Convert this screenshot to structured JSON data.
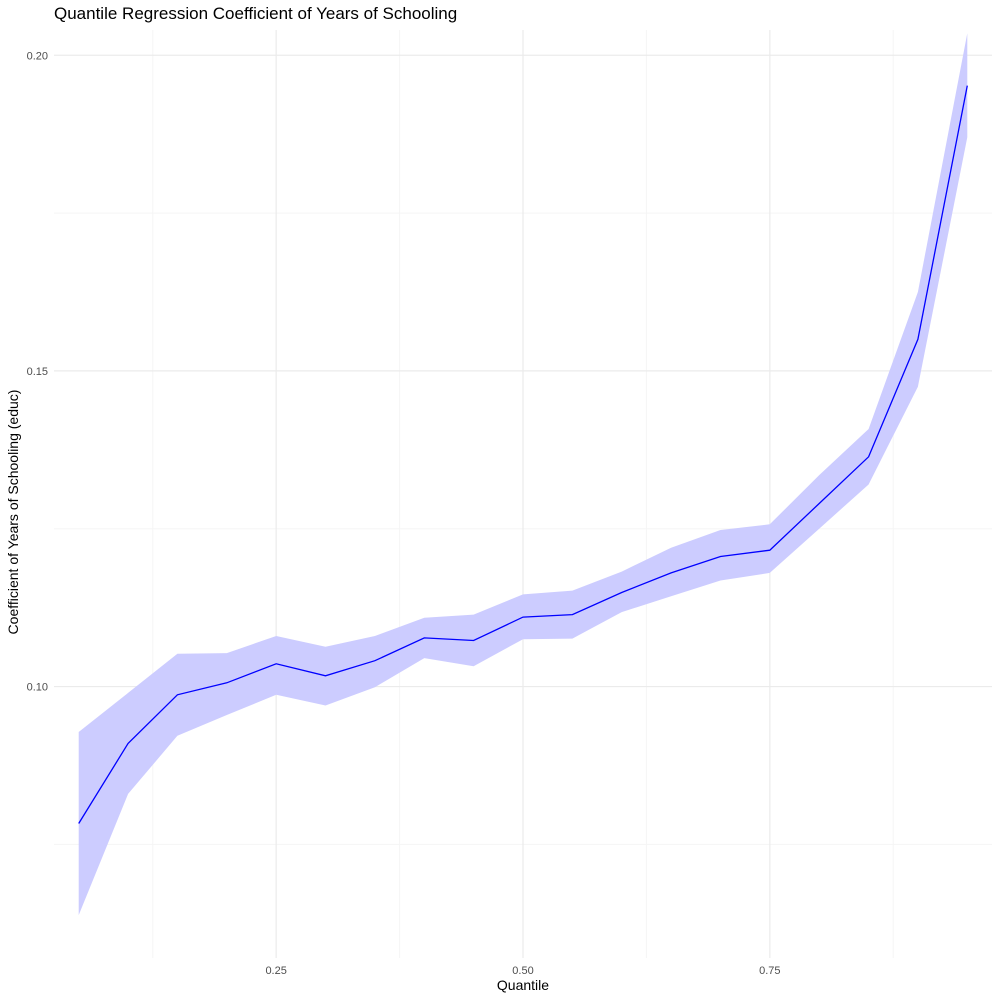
{
  "chart_data": {
    "type": "line",
    "title": "Quantile Regression Coefficient of Years of Schooling",
    "xlabel": "Quantile",
    "ylabel": "Coefficient of Years of Schooling (educ)",
    "xlim": [
      0.025,
      0.975
    ],
    "ylim": [
      0.057,
      0.204
    ],
    "x_ticks": [
      0.25,
      0.5,
      0.75
    ],
    "x_tick_labels": [
      "0.25",
      "0.50",
      "0.75"
    ],
    "y_ticks": [
      0.1,
      0.15,
      0.2
    ],
    "y_tick_labels": [
      "0.10",
      "0.15",
      "0.20"
    ],
    "grid": true,
    "series": [
      {
        "x": [
          0.05,
          0.1,
          0.15,
          0.2,
          0.25,
          0.3,
          0.35,
          0.4,
          0.45,
          0.5,
          0.55,
          0.6,
          0.65,
          0.7,
          0.75,
          0.8,
          0.85,
          0.9,
          0.95
        ],
        "values": [
          0.0783,
          0.091,
          0.0987,
          0.1006,
          0.1036,
          0.1017,
          0.1041,
          0.1077,
          0.1073,
          0.111,
          0.1114,
          0.1149,
          0.118,
          0.1206,
          0.1216,
          0.129,
          0.1364,
          0.155,
          0.1952
        ],
        "lower": [
          0.0638,
          0.083,
          0.0922,
          0.0955,
          0.0987,
          0.097,
          0.0999,
          0.1045,
          0.1032,
          0.1075,
          0.1076,
          0.1118,
          0.1143,
          0.1168,
          0.118,
          0.125,
          0.132,
          0.1475,
          0.187
        ],
        "upper": [
          0.0928,
          0.099,
          0.1052,
          0.1053,
          0.108,
          0.1063,
          0.108,
          0.1109,
          0.1114,
          0.1146,
          0.1152,
          0.1182,
          0.122,
          0.1248,
          0.1257,
          0.1335,
          0.1408,
          0.1625,
          0.2035
        ]
      }
    ],
    "colors": {
      "line": "#0000ff",
      "band": "#ccccff",
      "grid_major": "#ebebeb",
      "grid_minor": "#f5f5f5"
    }
  }
}
